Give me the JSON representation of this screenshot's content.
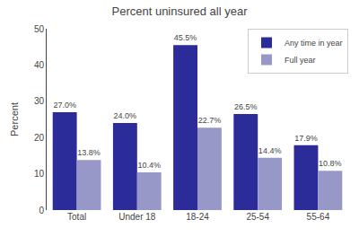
{
  "chart_data": {
    "type": "bar",
    "title": "Percent uninsured all year",
    "categories": [
      "Total",
      "Under 18",
      "18-24",
      "25-54",
      "55-64"
    ],
    "series": [
      {
        "name": "Any time in year",
        "color": "#2B2B9A",
        "values": [
          27.0,
          24.0,
          45.5,
          26.5,
          17.9
        ],
        "value_labels": [
          "27.0%",
          "24.0%",
          "45.5%",
          "26.5%",
          "17.9%"
        ]
      },
      {
        "name": "Full year",
        "color": "#9898C8",
        "values": [
          13.8,
          10.4,
          22.7,
          14.4,
          10.8
        ],
        "value_labels": [
          "13.8%",
          "10.4%",
          "22.7%",
          "14.4%",
          "10.8%"
        ]
      }
    ],
    "ylabel": "Percent",
    "ylim": [
      0,
      50
    ],
    "yticks": [
      0,
      10,
      20,
      30,
      40,
      50
    ],
    "grid": false,
    "legend": "upper right",
    "data_labels": true
  }
}
